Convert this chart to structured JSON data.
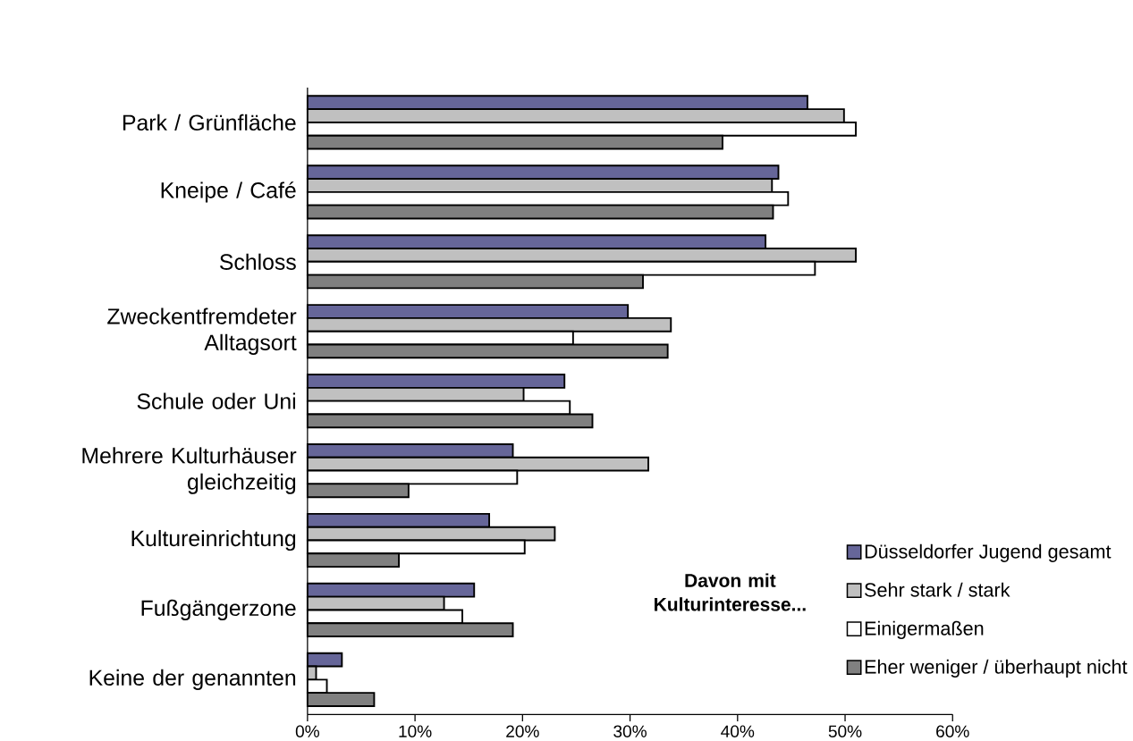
{
  "chart_data": {
    "type": "bar",
    "orientation": "horizontal",
    "categories": [
      "Park / Grünfläche",
      "Kneipe / Café",
      "Schloss",
      "Zweckentfremdeter Alltagsort",
      "Schule oder Uni",
      "Mehrere Kulturhäuser gleichzeitig",
      "Kultureinrichtung",
      "Fußgängerzone",
      "Keine der genannten"
    ],
    "series": [
      {
        "name": "Düsseldorfer Jugend gesamt",
        "color": "#666699",
        "values": [
          46.5,
          43.8,
          42.6,
          29.8,
          23.9,
          19.1,
          16.9,
          15.5,
          3.2
        ]
      },
      {
        "name": "Sehr stark / stark",
        "color": "#c0c0c0",
        "values": [
          49.9,
          43.2,
          51.0,
          33.8,
          20.1,
          31.7,
          23.0,
          12.7,
          0.8
        ]
      },
      {
        "name": "Einigermaßen",
        "color": "#ffffff",
        "values": [
          51.0,
          44.7,
          47.2,
          24.7,
          24.4,
          19.5,
          20.2,
          14.4,
          1.8
        ]
      },
      {
        "name": "Eher weniger / überhaupt nicht",
        "color": "#808080",
        "values": [
          38.6,
          43.3,
          31.2,
          33.5,
          26.5,
          9.4,
          8.5,
          19.1,
          6.2
        ]
      }
    ],
    "legend_title": "Davon mit Kulturinteresse...",
    "xlim": [
      0,
      60
    ],
    "xticks": [
      {
        "value": 0,
        "label": "0%"
      },
      {
        "value": 10,
        "label": "10%"
      },
      {
        "value": 20,
        "label": "20%"
      },
      {
        "value": 30,
        "label": "30%"
      },
      {
        "value": 40,
        "label": "40%"
      },
      {
        "value": 50,
        "label": "50%"
      },
      {
        "value": 60,
        "label": "60%"
      }
    ],
    "legend": "bottom right",
    "grid": false
  }
}
